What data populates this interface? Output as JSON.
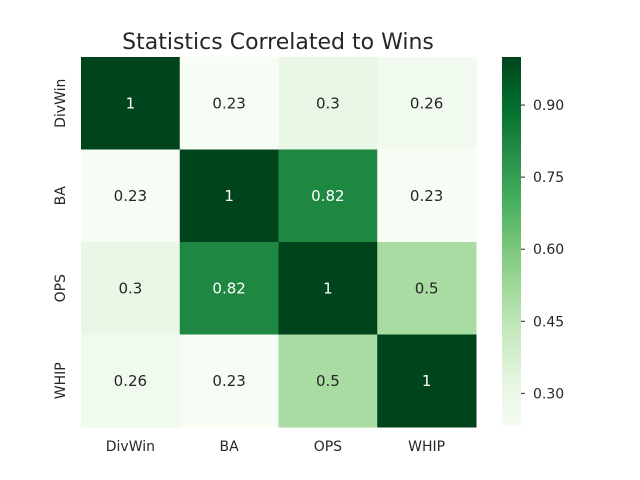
{
  "chart_data": {
    "type": "heatmap",
    "title": "Statistics Correlated to Wins",
    "xlabel": "",
    "ylabel": "",
    "x_categories": [
      "DivWin",
      "BA",
      "OPS",
      "WHIP"
    ],
    "y_categories": [
      "DivWin",
      "BA",
      "OPS",
      "WHIP"
    ],
    "values": [
      [
        1,
        0.23,
        0.3,
        0.26
      ],
      [
        0.23,
        1,
        0.82,
        0.23
      ],
      [
        0.3,
        0.82,
        1,
        0.5
      ],
      [
        0.26,
        0.23,
        0.5,
        1
      ]
    ],
    "annotations": [
      [
        "1",
        "0.23",
        "0.3",
        "0.26"
      ],
      [
        "0.23",
        "1",
        "0.82",
        "0.23"
      ],
      [
        "0.3",
        "0.82",
        "1",
        "0.5"
      ],
      [
        "0.26",
        "0.23",
        "0.5",
        "1"
      ]
    ],
    "colormap": "Greens",
    "color_range": [
      0.23,
      1
    ],
    "colorbar": {
      "ticks": [
        0.3,
        0.45,
        0.6,
        0.75,
        0.9
      ],
      "tick_labels": [
        "0.30",
        "0.45",
        "0.60",
        "0.75",
        "0.90"
      ],
      "position": "right"
    },
    "colors": {
      "text_dark": "#262626",
      "text_light": "#ffffff"
    }
  }
}
